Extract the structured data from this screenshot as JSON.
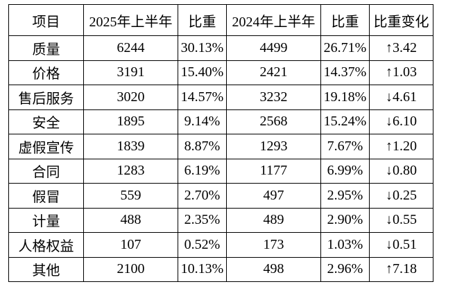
{
  "table": {
    "header": [
      "项目",
      "2025年上半年",
      "比重",
      "2024年上半年",
      "比重",
      "比重变化"
    ],
    "rows": [
      [
        "质量",
        "6244",
        "30.13%",
        "4499",
        "26.71%",
        "↑3.42"
      ],
      [
        "价格",
        "3191",
        "15.40%",
        "2421",
        "14.37%",
        "↑1.03"
      ],
      [
        "售后服务",
        "3020",
        "14.57%",
        "3232",
        "19.18%",
        "↓4.61"
      ],
      [
        "安全",
        "1895",
        "9.14%",
        "2568",
        "15.24%",
        "↓6.10"
      ],
      [
        "虚假宣传",
        "1839",
        "8.87%",
        "1293",
        "7.67%",
        "↑1.20"
      ],
      [
        "合同",
        "1283",
        "6.19%",
        "1177",
        "6.99%",
        "↓0.80"
      ],
      [
        "假冒",
        "559",
        "2.70%",
        "497",
        "2.95%",
        "↓0.25"
      ],
      [
        "计量",
        "488",
        "2.35%",
        "489",
        "2.90%",
        "↓0.55"
      ],
      [
        "人格权益",
        "107",
        "0.52%",
        "173",
        "1.03%",
        "↓0.51"
      ],
      [
        "其他",
        "2100",
        "10.13%",
        "498",
        "2.96%",
        "↑7.18"
      ]
    ]
  }
}
